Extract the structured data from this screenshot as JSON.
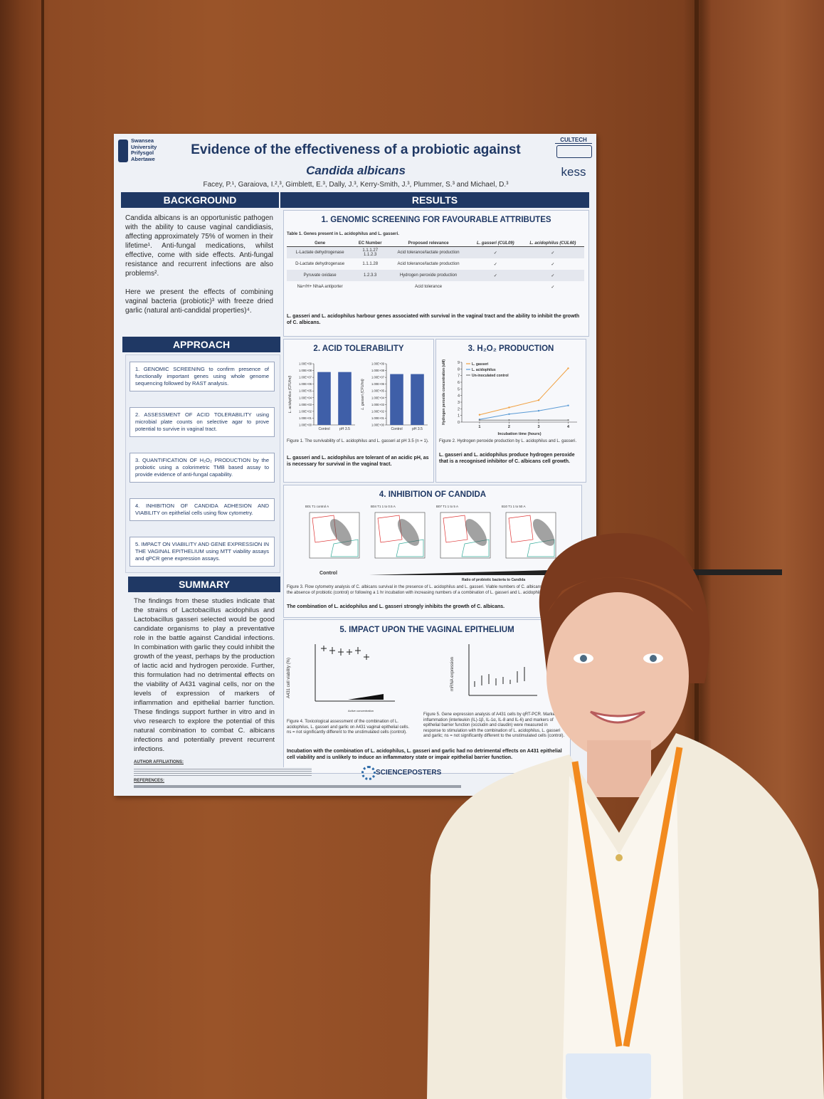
{
  "poster": {
    "logos": {
      "left": [
        "Swansea",
        "University",
        "Prifysgol",
        "Abertawe"
      ],
      "right": [
        "CULTECH",
        "kess"
      ]
    },
    "title": "Evidence of the effectiveness of a probiotic against",
    "subtitle": "Candida albicans",
    "authors": "Facey, P.¹, Garaiova, I.²,³, Gimblett, E.³, Dally, J.³, Kerry-Smith, J.³, Plummer, S.³ and Michael, D.³",
    "background": {
      "heading": "BACKGROUND",
      "paragraphs": [
        "Candida albicans is an opportunistic pathogen with the ability to cause vaginal candidiasis, affecting approximately 75% of women in their lifetime¹. Anti-fungal medications, whilst effective, come with side effects. Anti-fungal resistance and recurrent infections are also problems².",
        "Here we present the effects of combining vaginal bacteria (probiotic)³ with freeze dried garlic (natural anti-candidal properties)⁴."
      ]
    },
    "approach": {
      "heading": "APPROACH",
      "steps": [
        "1. GENOMIC SCREENING to confirm presence of functionally important genes using whole genome sequencing followed by RAST analysis.",
        "2. ASSESSMENT OF ACID TOLERABILITY using microbial plate counts on selective agar to prove potential to survive in vaginal tract.",
        "3. QUANTIFICATION OF H₂O₂ PRODUCTION by the probiotic using a colorimetric TMB based assay to provide evidence of anti-fungal capability.",
        "4. INHIBITION OF CANDIDA ADHESION AND VIABILITY on epithelial cells using flow cytometry.",
        "5. IMPACT ON VIABILITY AND GENE EXPRESSION IN THE VAGINAL EPITHELIUM using MTT viability assays and qPCR gene expression assays."
      ]
    },
    "summary": {
      "heading": "SUMMARY",
      "text": "The findings from these studies indicate that the strains of Lactobacillus acidophilus and Lactobacillus gasseri selected would be good candidate organisms to play a preventative role in the battle against Candidal infections. In combination with garlic they could inhibit the growth of the yeast, perhaps by the production of lactic acid and hydrogen peroxide. Further, this formulation had no detrimental effects on the viability of A431 vaginal cells, nor on the levels of expression of markers of inflammation and epithelial barrier function. These findings support further in vitro and in vivo research to explore the potential of this natural combination to combat C. albicans infections and potentially prevent recurrent infections."
    },
    "results": {
      "heading": "RESULTS",
      "genomic": {
        "heading": "1. GENOMIC SCREENING FOR FAVOURABLE ATTRIBUTES",
        "table_caption": "Table 1. Genes present in L. acidophilus and L. gasseri.",
        "columns": [
          "Gene",
          "EC Number",
          "Proposed relevance",
          "L. gasseri (CUL09)",
          "L. acidophilus (CUL60)"
        ],
        "rows": [
          [
            "L-Lactate dehydrogenase",
            "1.1.1.27\n1.1.2.3",
            "Acid tolerance/lactate production",
            "✓",
            "✓"
          ],
          [
            "D-Lactate dehydrogenase",
            "1.1.1.28",
            "Acid tolerance/lactate production",
            "✓",
            "✓"
          ],
          [
            "Pyruvate oxidase",
            "1.2.3.3",
            "Hydrogen peroxide production",
            "✓",
            "✓"
          ],
          [
            "Na+/H+ NhaA antiporter",
            null,
            "Acid tolerance",
            null,
            "✓"
          ]
        ],
        "conclusion": "L. gasseri and L. acidophilus harbour genes associated with survival in the vaginal tract and the ability to inhibit the growth of C. albicans."
      },
      "acid": {
        "heading": "2. ACID TOLERABILITY",
        "charts": [
          {
            "type": "bar",
            "ylabel": "L. acidophilus (CFU/ml)",
            "categories": [
              "Control",
              "pH 3.5"
            ],
            "values": [
              60000000,
              60000000
            ],
            "color": "#3f5fa8",
            "log_scale": true,
            "ylim": [
              1,
              1000000000
            ],
            "yticks": [
              {
                "value": 1,
                "label": "1.00E+00"
              },
              {
                "value": 10,
                "label": "1.00E+01"
              },
              {
                "value": 100,
                "label": "1.00E+02"
              },
              {
                "value": 1000,
                "label": "1.00E+03"
              },
              {
                "value": 10000,
                "label": "1.00E+04"
              },
              {
                "value": 100000,
                "label": "1.00E+05"
              },
              {
                "value": 1000000,
                "label": "1.00E+06"
              },
              {
                "value": 10000000,
                "label": "1.00E+07"
              },
              {
                "value": 100000000,
                "label": "1.00E+08"
              },
              {
                "value": 1000000000,
                "label": "1.00E+09"
              }
            ]
          },
          {
            "type": "bar",
            "ylabel": "L. gasseri (CFU/ml)",
            "categories": [
              "Control",
              "pH 3.5"
            ],
            "values": [
              30000000,
              30000000
            ],
            "color": "#3f5fa8",
            "log_scale": true,
            "ylim": [
              1,
              1000000000
            ],
            "yticks": [
              {
                "value": 1,
                "label": "1.00E+00"
              },
              {
                "value": 10,
                "label": "1.00E+01"
              },
              {
                "value": 100,
                "label": "1.00E+02"
              },
              {
                "value": 1000,
                "label": "1.00E+03"
              },
              {
                "value": 10000,
                "label": "1.00E+04"
              },
              {
                "value": 100000,
                "label": "1.00E+05"
              },
              {
                "value": 1000000,
                "label": "1.00E+06"
              },
              {
                "value": 10000000,
                "label": "1.00E+07"
              },
              {
                "value": 100000000,
                "label": "1.00E+08"
              },
              {
                "value": 1000000000,
                "label": "1.00E+09"
              }
            ]
          }
        ],
        "caption": "Figure 1. The survivability of L. acidophilus and L. gasseri at pH 3.5 (n = 1).",
        "conclusion": "L. gasseri and L. acidophilus are tolerant of an acidic pH, as is necessary for survival in the vaginal tract."
      },
      "h2o2": {
        "heading": "3. H₂O₂ PRODUCTION",
        "chart": {
          "type": "line",
          "xlabel": "Incubation time (hours)",
          "ylabel": "Hydrogen peroxide concentration (uM)",
          "x": [
            1,
            2,
            3,
            4
          ],
          "xlim": [
            0.4,
            4.3
          ],
          "xticks": [
            1,
            2,
            3,
            4
          ],
          "ylim": [
            0,
            9
          ],
          "yticks": [
            0,
            1,
            2,
            3,
            4,
            5,
            6,
            7,
            8,
            9
          ],
          "series": [
            {
              "name": "L. gasseri",
              "color": "#f0a040",
              "values": [
                1.1,
                2.2,
                3.3,
                8.1
              ]
            },
            {
              "name": "L. acidophilus",
              "color": "#5b9bd5",
              "values": [
                0.4,
                1.2,
                1.7,
                2.5
              ]
            },
            {
              "name": "Un-inoculated control",
              "color": "#7f7f7f",
              "values": [
                0.3,
                0.3,
                0.3,
                0.3
              ]
            }
          ]
        },
        "caption": "Figure 2. Hydrogen peroxide production by L. acidophilus and L. gasseri.",
        "conclusion": "L. gasseri and L. acidophilus produce hydrogen peroxide that is a recognised inhibitor of C. albicans cell growth."
      },
      "inhibition": {
        "heading": "4. INHIBITION OF CANDIDA",
        "panels": [
          "B01 T1 control A",
          "B04 T1 1 to 0.5 A",
          "B07 T1 1 to 5 A",
          "B10 T1 1 to 50 A"
        ],
        "control_label": "Control",
        "ratio_label": "Ratio of probiotic bacteria to Candida",
        "caption": "Figure 3. Flow cytometry analysis of C. albicans survival in the presence of L. acidophilus and L. gasseri. Viable numbers of C. albicans were measured in the absence of probiotic (control) or following a 1 hr incubation with increasing numbers of a combination of L. gasseri and L. acidophilus.",
        "conclusion": "The combination of L. acidophilus and L. gasseri strongly inhibits the growth of C. albicans."
      },
      "epithelium": {
        "heading": "5. IMPACT UPON THE VAGINAL EPITHELIUM",
        "ylabel_left": "A431 cell viability (%)",
        "ylabel_right": "mRNA expression",
        "xlabel_left": "Active concentration",
        "caption_left": "Figure 4. Toxicological assessment of the combination of L. acidophilus, L. gasseri and garlic on A431 vaginal epithelial cells. ns = not significantly different to the unstimulated cells (control).",
        "caption_right": "Figure 5. Gene expression analysis of A431 cells by qRT-PCR. Markers of inflammation (interleukin (IL)-1β, IL-1α, IL-8 and IL-6) and markers of epithelial barrier function (occludin and claudin) were measured in response to stimulation with the combination of L. acidophilus, L. gasseri and garlic; ns = not significantly different to the unstimulated cells (control).",
        "conclusion": "Incubation with the combination of L. acidophilus, L. gasseri and garlic had no detrimental effects on A431 epithelial cell viability and is unlikely to induce an inflammatory state or impair epithelial barrier function."
      }
    },
    "footer": {
      "affiliations_heading": "AUTHOR AFFILIATIONS:",
      "references_heading": "REFERENCES:",
      "sponsor": "SCIENCEPOSTERS"
    }
  }
}
